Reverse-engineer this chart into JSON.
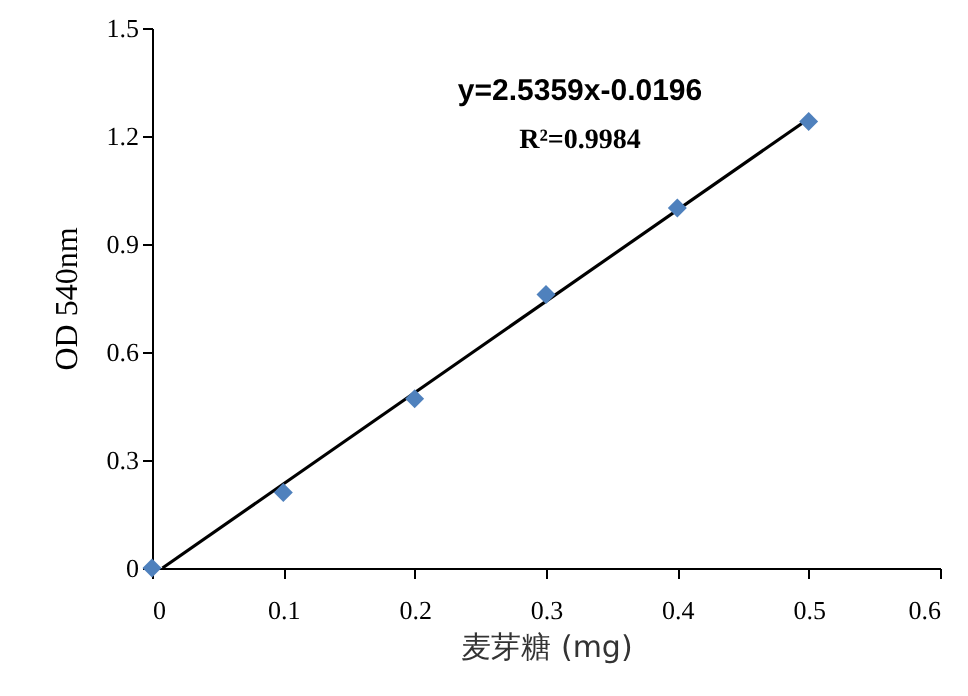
{
  "chart_data": {
    "type": "scatter",
    "xlabel": "麦芽糖 (mg)",
    "ylabel": "OD 540nm",
    "annotations": [
      "y=2.5359x-0.0196",
      "R²=0.9984"
    ],
    "x": [
      0,
      0.1,
      0.2,
      0.3,
      0.4,
      0.5
    ],
    "series": [
      {
        "color": "#4f81bd",
        "marker": "diamond",
        "values": [
          0,
          0.21,
          0.47,
          0.76,
          1.0,
          1.24
        ]
      },
      {
        "type": "line",
        "color": "#000000",
        "line_style": "solid",
        "x": [
          0.008,
          0.5
        ],
        "values": [
          0,
          1.248
        ]
      }
    ],
    "xlim": [
      0,
      0.6
    ],
    "xticks": [
      0,
      0.1,
      0.2,
      0.3,
      0.4,
      0.5,
      0.6
    ],
    "ylim": [
      0,
      1.5
    ],
    "yticks": [
      0,
      0.3,
      0.6,
      0.9,
      1.2,
      1.5
    ],
    "grid": false
  }
}
